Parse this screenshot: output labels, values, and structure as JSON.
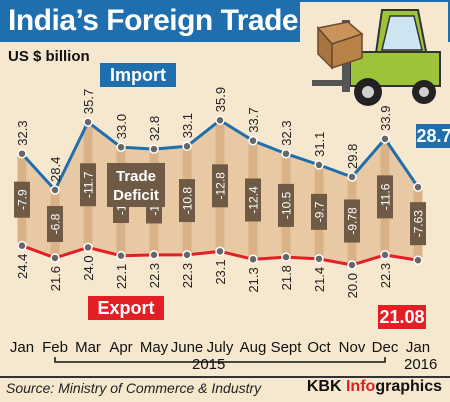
{
  "header": {
    "title": "India’s Foreign Trade",
    "units": "US $ billion"
  },
  "chart_data": {
    "type": "line",
    "categories": [
      "Jan",
      "Feb",
      "Mar",
      "Apr",
      "May",
      "June",
      "July",
      "Aug",
      "Sept",
      "Oct",
      "Nov",
      "Dec",
      "Jan"
    ],
    "series": [
      {
        "name": "Import",
        "values": [
          32.3,
          28.4,
          35.7,
          33.0,
          32.8,
          33.1,
          35.9,
          33.7,
          32.3,
          31.1,
          29.8,
          33.9,
          28.71
        ],
        "labels": [
          "32.3",
          "28.4",
          "35.7",
          "33.0",
          "32.8",
          "33.1",
          "35.9",
          "33.7",
          "32.3",
          "31.1",
          "29.8",
          "33.9",
          "28.71"
        ],
        "color": "#1f6fae"
      },
      {
        "name": "Export",
        "values": [
          24.4,
          21.6,
          24.0,
          22.1,
          22.3,
          22.3,
          23.1,
          21.3,
          21.8,
          21.4,
          20.0,
          22.3,
          21.08
        ],
        "labels": [
          "24.4",
          "21.6",
          "24.0",
          "22.1",
          "22.3",
          "22.3",
          "23.1",
          "21.3",
          "21.8",
          "21.4",
          "20.0",
          "22.3",
          "21.08"
        ],
        "color": "#e31e24"
      }
    ],
    "deficit": {
      "name": "Trade Deficit",
      "labels": [
        "-7.9",
        "-6.8",
        "-11.7",
        "-10.9",
        "-10.5",
        "-10.8",
        "-12.8",
        "-12.4",
        "-10.5",
        "-9.7",
        "-9.78",
        "-11.6",
        "-7.63"
      ]
    },
    "year_labels": [
      "2015",
      "2016"
    ]
  },
  "footer": {
    "source": "Source: Ministry of Commerce & Industry",
    "brand_prefix": "KBK ",
    "brand_accent": "Info",
    "brand_suffix": "graphics"
  },
  "colors": {
    "import": "#1f6fae",
    "export": "#e31e24",
    "band": "#e9c9a3",
    "deficit_box": "#6e5a45",
    "background": "#f6e7cf"
  },
  "icons": [
    "forklift-icon"
  ]
}
